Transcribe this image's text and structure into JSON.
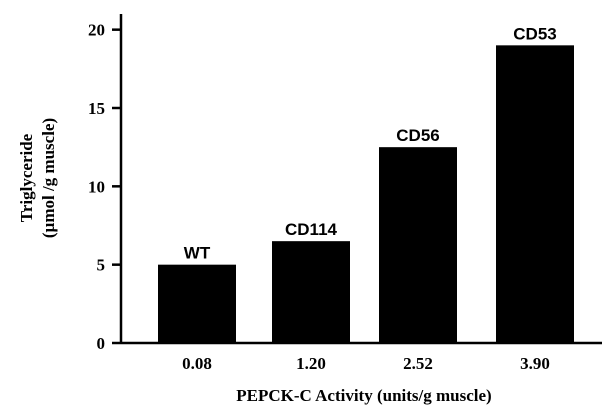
{
  "chart_data": {
    "type": "bar",
    "categories": [
      "0.08",
      "1.20",
      "2.52",
      "3.90"
    ],
    "values": [
      5,
      6.5,
      12.5,
      19
    ],
    "bar_labels": [
      "WT",
      "CD114",
      "CD56",
      "CD53"
    ],
    "title": "",
    "xlabel": "PEPCK-C Activity (units/g muscle)",
    "ylabel_lines": [
      "Triglyceride",
      "(µmol /g muscle)"
    ],
    "ylim": [
      0,
      21
    ],
    "yticks": [
      0,
      5,
      10,
      15,
      20
    ],
    "grid": false,
    "bar_color": "#000000",
    "axis_color": "#000000"
  }
}
